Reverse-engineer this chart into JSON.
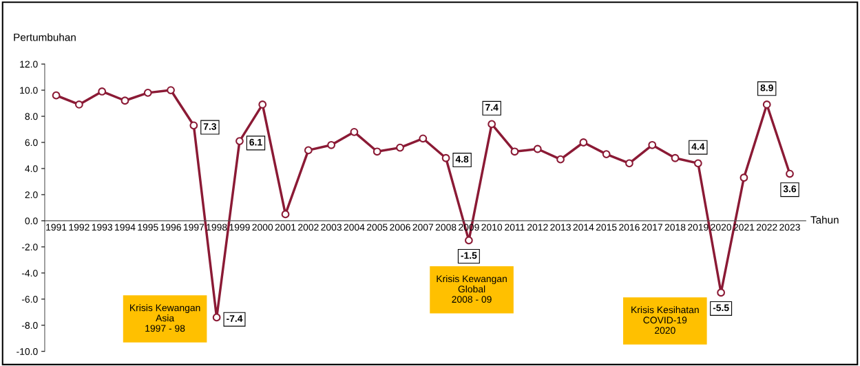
{
  "chart_data": {
    "type": "line",
    "ylabel": "Pertumbuhan",
    "xlabel": "Tahun",
    "categories": [
      "1991",
      "1992",
      "1993",
      "1994",
      "1995",
      "1996",
      "1997",
      "1998",
      "1999",
      "2000",
      "2001",
      "2002",
      "2003",
      "2004",
      "2005",
      "2006",
      "2007",
      "2008",
      "2009",
      "2010",
      "2011",
      "2012",
      "2013",
      "2014",
      "2015",
      "2016",
      "2017",
      "2018",
      "2019",
      "2020",
      "2021",
      "2022",
      "2023"
    ],
    "series": [
      {
        "color": "#8b1a35",
        "values": [
          9.6,
          8.9,
          9.9,
          9.2,
          9.8,
          10.0,
          7.3,
          -7.4,
          6.1,
          8.9,
          0.5,
          5.4,
          5.8,
          6.8,
          5.3,
          5.6,
          6.3,
          4.8,
          -1.5,
          7.4,
          5.3,
          5.5,
          4.7,
          6.0,
          5.1,
          4.4,
          5.8,
          4.8,
          4.4,
          -5.5,
          3.3,
          8.9,
          3.6
        ],
        "value_labels": [
          null,
          null,
          null,
          null,
          null,
          null,
          "7.3",
          "-7.4",
          "6.1",
          null,
          null,
          null,
          null,
          null,
          null,
          null,
          null,
          "4.8",
          "-1.5",
          "7.4",
          null,
          null,
          null,
          null,
          null,
          null,
          null,
          null,
          "4.4",
          "-5.5",
          null,
          "8.9",
          "3.6"
        ]
      }
    ],
    "ylim": [
      -10,
      12
    ],
    "yticks": [
      {
        "value": -10,
        "label": "-10.0"
      },
      {
        "value": -8,
        "label": "-8.0"
      },
      {
        "value": -6,
        "label": "-6.0"
      },
      {
        "value": -4,
        "label": "-4.0"
      },
      {
        "value": -2,
        "label": "-2.0"
      },
      {
        "value": 0,
        "label": "0.0"
      },
      {
        "value": 2,
        "label": "2.0"
      },
      {
        "value": 4,
        "label": "4.0"
      },
      {
        "value": 6,
        "label": "6.0"
      },
      {
        "value": 8,
        "label": "8.0"
      },
      {
        "value": 10,
        "label": "10.0"
      },
      {
        "value": 12,
        "label": "12.0"
      }
    ],
    "marker": "circle",
    "line_style": "solid",
    "grid": false,
    "legend": false,
    "annotations": [
      "Krisis Kewangan\nAsia\n1997 - 98",
      "Krisis Kewangan\nGlobal\n2008 - 09",
      "Krisis Kesihatan\nCOVID-19\n2020"
    ]
  }
}
